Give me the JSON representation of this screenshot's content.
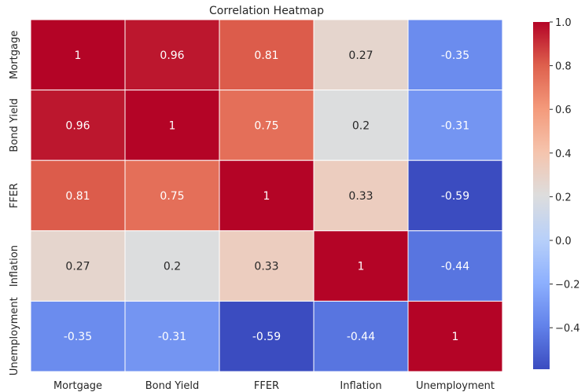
{
  "chart_data": {
    "type": "heatmap",
    "title": "Correlation Heatmap",
    "xlabel": "",
    "ylabel": "",
    "x_categories": [
      "Mortgage",
      "Bond Yield",
      "FFER",
      "Inflation",
      "Unemployment"
    ],
    "y_categories": [
      "Mortgage",
      "Bond Yield",
      "FFER",
      "Inflation",
      "Unemployment"
    ],
    "values": [
      [
        1,
        0.96,
        0.81,
        0.27,
        -0.35
      ],
      [
        0.96,
        1,
        0.75,
        0.2,
        -0.31
      ],
      [
        0.81,
        0.75,
        1,
        0.33,
        -0.59
      ],
      [
        0.27,
        0.2,
        0.33,
        1,
        -0.44
      ],
      [
        -0.35,
        -0.31,
        -0.59,
        -0.44,
        1
      ]
    ],
    "annotations": [
      [
        "1",
        "0.96",
        "0.81",
        "0.27",
        "-0.35"
      ],
      [
        "0.96",
        "1",
        "0.75",
        "0.2",
        "-0.31"
      ],
      [
        "0.81",
        "0.75",
        "1",
        "0.33",
        "-0.59"
      ],
      [
        "0.27",
        "0.2",
        "0.33",
        "1",
        "-0.44"
      ],
      [
        "-0.35",
        "-0.31",
        "-0.59",
        "-0.44",
        "1"
      ]
    ],
    "colormap": "coolwarm",
    "vmin": -0.59,
    "vmax": 1.0,
    "colorbar_ticks": [
      1.0,
      0.8,
      0.6,
      0.4,
      0.2,
      0.0,
      -0.2,
      -0.4
    ],
    "colorbar_tick_labels": [
      "1.0",
      "0.8",
      "0.6",
      "0.4",
      "0.2",
      "0.0",
      "−0.2",
      "−0.4"
    ],
    "grid": false,
    "cell_border_color": "#ffffff",
    "legend": "colorbar-right"
  }
}
